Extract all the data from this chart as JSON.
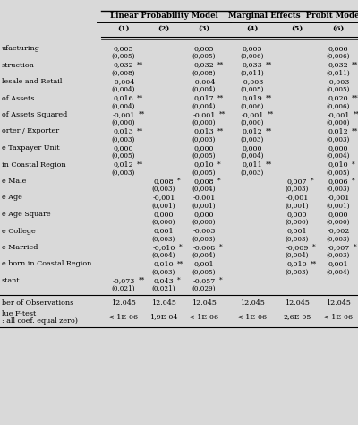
{
  "col_group1_label": "Linear Probability Model",
  "col_group2_label": "Marginal Effects  Probit Model",
  "col_labels": [
    "(1)",
    "(2)",
    "(3)",
    "(4)",
    "(5)",
    "(6)"
  ],
  "rows": [
    {
      "label": "ufacturing",
      "values": [
        "0,005",
        "",
        "0,005",
        "0,005",
        "",
        "0,006"
      ],
      "se": [
        "(0,005)",
        "",
        "(0,005)",
        "(0,006)",
        "",
        "(0,006)"
      ],
      "stars": [
        "",
        "",
        "",
        "",
        "",
        ""
      ]
    },
    {
      "label": "struction",
      "values": [
        "0,032",
        "",
        "0,032",
        "0,033",
        "",
        "0,032"
      ],
      "se": [
        "(0,008)",
        "",
        "(0,008)",
        "(0,011)",
        "",
        "(0,011)"
      ],
      "stars": [
        "**",
        "",
        "**",
        "**",
        "",
        "**"
      ]
    },
    {
      "label": "lesale and Retail",
      "values": [
        "-0,004",
        "",
        "-0,004",
        "-0,003",
        "",
        "-0,003"
      ],
      "se": [
        "(0,004)",
        "",
        "(0,004)",
        "(0,005)",
        "",
        "(0,005)"
      ],
      "stars": [
        "",
        "",
        "",
        "",
        "",
        ""
      ]
    },
    {
      "label": "of Assets",
      "values": [
        "0,016",
        "",
        "0,017",
        "0,019",
        "",
        "0,020"
      ],
      "se": [
        "(0,004)",
        "",
        "(0,004)",
        "(0,006)",
        "",
        "(0,006)"
      ],
      "stars": [
        "**",
        "",
        "**",
        "**",
        "",
        "***"
      ]
    },
    {
      "label": "of Assets Squared",
      "values": [
        "-0,001",
        "",
        "-0,001",
        "-0,001",
        "",
        "-0,001"
      ],
      "se": [
        "(0,000)",
        "",
        "(0,000)",
        "(0,000)",
        "",
        "(0,000)"
      ],
      "stars": [
        "**",
        "",
        "**",
        "**",
        "",
        "**"
      ]
    },
    {
      "label": "orter / Exporter",
      "values": [
        "0,013",
        "",
        "0,013",
        "0,012",
        "",
        "0,012"
      ],
      "se": [
        "(0,003)",
        "",
        "(0,003)",
        "(0,003)",
        "",
        "(0,003)"
      ],
      "stars": [
        "**",
        "",
        "**",
        "**",
        "",
        "**"
      ]
    },
    {
      "label": "e Taxpayer Unit",
      "values": [
        "0,000",
        "",
        "0,000",
        "0,000",
        "",
        "0,000"
      ],
      "se": [
        "(0,005)",
        "",
        "(0,005)",
        "(0,004)",
        "",
        "(0,004)"
      ],
      "stars": [
        "",
        "",
        "",
        "",
        "",
        ""
      ]
    },
    {
      "label": "in Coastal Region",
      "values": [
        "0,012",
        "",
        "0,010",
        "0,011",
        "",
        "0,010"
      ],
      "se": [
        "(0,003)",
        "",
        "(0,005)",
        "(0,003)",
        "",
        "(0,005)"
      ],
      "stars": [
        "**",
        "",
        "*",
        "**",
        "",
        "*"
      ]
    },
    {
      "label": "e Male",
      "values": [
        "",
        "0,008",
        "0,008",
        "",
        "0,007",
        "0,006"
      ],
      "se": [
        "",
        "(0,003)",
        "(0,004)",
        "",
        "(0,003)",
        "(0,003)"
      ],
      "stars": [
        "",
        "*",
        "*",
        "",
        "*",
        "*"
      ]
    },
    {
      "label": "e Age",
      "values": [
        "",
        "-0,001",
        "-0,001",
        "",
        "-0,001",
        "-0,001"
      ],
      "se": [
        "",
        "(0,001)",
        "(0,001)",
        "",
        "(0,001)",
        "(0,001)"
      ],
      "stars": [
        "",
        "",
        "",
        "",
        "",
        ""
      ]
    },
    {
      "label": "e Age Square",
      "values": [
        "",
        "0,000",
        "0,000",
        "",
        "0,000",
        "0,000"
      ],
      "se": [
        "",
        "(0,000)",
        "(0,000)",
        "",
        "(0,000)",
        "(0,000)"
      ],
      "stars": [
        "",
        "",
        "",
        "",
        "",
        ""
      ]
    },
    {
      "label": "e College",
      "values": [
        "",
        "0,001",
        "-0,003",
        "",
        "0,001",
        "-0,002"
      ],
      "se": [
        "",
        "(0,003)",
        "(0,003)",
        "",
        "(0,003)",
        "(0,003)"
      ],
      "stars": [
        "",
        "",
        "",
        "",
        "",
        ""
      ]
    },
    {
      "label": "e Married",
      "values": [
        "",
        "-0,010",
        "-0,008",
        "",
        "-0,009",
        "-0,007"
      ],
      "se": [
        "",
        "(0,004)",
        "(0,004)",
        "",
        "(0,004)",
        "(0,003)"
      ],
      "stars": [
        "",
        "*",
        "*",
        "",
        "*",
        "*"
      ]
    },
    {
      "label": "e born in Coastal Region",
      "values": [
        "",
        "0,010",
        "0,001",
        "",
        "0,010",
        "0,001"
      ],
      "se": [
        "",
        "(0,003)",
        "(0,005)",
        "",
        "(0,003)",
        "(0,004)"
      ],
      "stars": [
        "",
        "**",
        "",
        "",
        "**",
        ""
      ]
    },
    {
      "label": "stant",
      "values": [
        "-0,073",
        "0,043",
        "-0,057",
        "",
        "",
        ""
      ],
      "se": [
        "(0,021)",
        "(0,021)",
        "(0,029)",
        "",
        "",
        ""
      ],
      "stars": [
        "**",
        "*",
        "*",
        "",
        "",
        ""
      ]
    }
  ],
  "obs_label": "ber of Observations",
  "obs_values": [
    "12.045",
    "12.045",
    "12.045",
    "12.045",
    "12.045",
    "12.045"
  ],
  "ftest_label1": "lue F-test",
  "ftest_label2": ": all coef. equal zero)",
  "ftest_values": [
    "< 1E-06",
    "1,9E-04",
    "< 1E-06",
    "< 1E-06",
    "2,6E-05",
    "< 1E-06"
  ],
  "bg_color": "#d9d9d9",
  "text_color": "#000000",
  "fs": 5.8,
  "fs_se": 5.2,
  "fs_header": 6.2
}
